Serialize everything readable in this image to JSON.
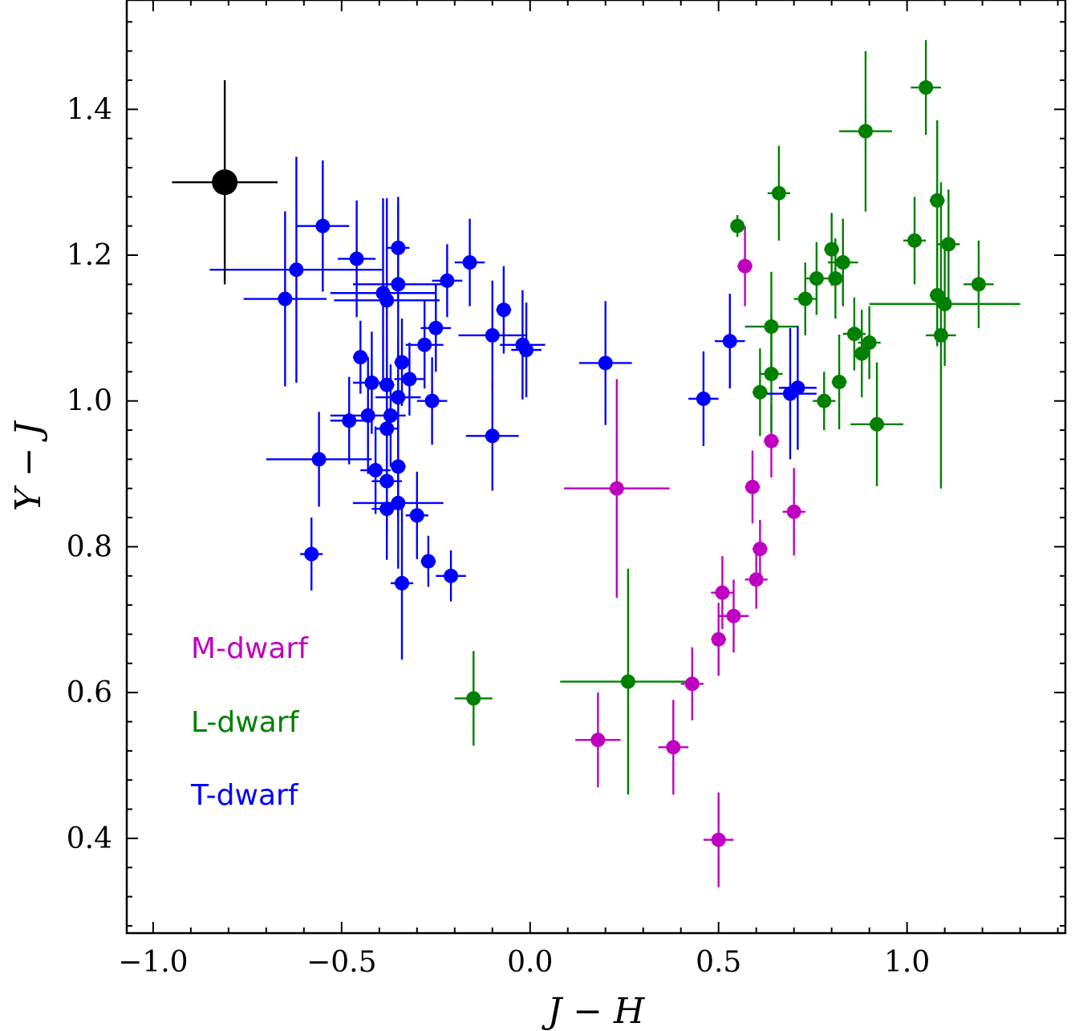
{
  "chart_data": {
    "type": "scatter",
    "xlabel": "J − H",
    "ylabel": "Y − J",
    "xlim": [
      -1.07,
      1.42
    ],
    "ylim": [
      0.27,
      1.55
    ],
    "xticks": [
      -1.0,
      -0.5,
      0.0,
      0.5,
      1.0
    ],
    "xtick_labels": [
      "−1.0",
      "−0.5",
      "0.0",
      "0.5",
      "1.0"
    ],
    "yticks": [
      0.4,
      0.6,
      0.8,
      1.0,
      1.2,
      1.4
    ],
    "ytick_labels": [
      "0.4",
      "0.6",
      "0.8",
      "1.0",
      "1.2",
      "1.4"
    ],
    "grid": false,
    "legend_placement": "bottom-left",
    "colors": {
      "M-dwarf": "#c000c0",
      "L-dwarf": "#008000",
      "T-dwarf": "#0000ff",
      "highlight": "#000000"
    },
    "series": [
      {
        "name": "M-dwarf",
        "points": [
          {
            "x": 0.57,
            "y": 1.185,
            "xerr": 0.02,
            "yerr": 0.055
          },
          {
            "x": 0.64,
            "y": 0.945,
            "xerr": 0.02,
            "yerr": 0.05
          },
          {
            "x": 0.59,
            "y": 0.882,
            "xerr": 0.02,
            "yerr": 0.05
          },
          {
            "x": 0.23,
            "y": 0.88,
            "xerr": 0.14,
            "yerr": 0.15
          },
          {
            "x": 0.7,
            "y": 0.848,
            "xerr": 0.03,
            "yerr": 0.06
          },
          {
            "x": 0.61,
            "y": 0.797,
            "xerr": 0.02,
            "yerr": 0.04
          },
          {
            "x": 0.6,
            "y": 0.755,
            "xerr": 0.03,
            "yerr": 0.04
          },
          {
            "x": 0.51,
            "y": 0.737,
            "xerr": 0.03,
            "yerr": 0.05
          },
          {
            "x": 0.54,
            "y": 0.705,
            "xerr": 0.04,
            "yerr": 0.05
          },
          {
            "x": 0.5,
            "y": 0.673,
            "xerr": 0.02,
            "yerr": 0.05
          },
          {
            "x": 0.43,
            "y": 0.612,
            "xerr": 0.03,
            "yerr": 0.05
          },
          {
            "x": 0.18,
            "y": 0.535,
            "xerr": 0.06,
            "yerr": 0.065
          },
          {
            "x": 0.38,
            "y": 0.525,
            "xerr": 0.04,
            "yerr": 0.065
          },
          {
            "x": 0.5,
            "y": 0.398,
            "xerr": 0.04,
            "yerr": 0.065
          }
        ]
      },
      {
        "name": "L-dwarf",
        "points": [
          {
            "x": 1.05,
            "y": 1.43,
            "xerr": 0.04,
            "yerr": 0.065
          },
          {
            "x": 0.89,
            "y": 1.37,
            "xerr": 0.07,
            "yerr": 0.11
          },
          {
            "x": 0.66,
            "y": 1.285,
            "xerr": 0.03,
            "yerr": 0.065
          },
          {
            "x": 1.08,
            "y": 1.275,
            "xerr": 0.02,
            "yerr": 0.11
          },
          {
            "x": 0.55,
            "y": 1.24,
            "xerr": 0.01,
            "yerr": 0.015
          },
          {
            "x": 1.02,
            "y": 1.22,
            "xerr": 0.03,
            "yerr": 0.06
          },
          {
            "x": 1.11,
            "y": 1.215,
            "xerr": 0.03,
            "yerr": 0.075
          },
          {
            "x": 0.8,
            "y": 1.208,
            "xerr": 0.02,
            "yerr": 0.05
          },
          {
            "x": 0.83,
            "y": 1.19,
            "xerr": 0.04,
            "yerr": 0.06
          },
          {
            "x": 0.76,
            "y": 1.168,
            "xerr": 0.03,
            "yerr": 0.05
          },
          {
            "x": 0.81,
            "y": 1.168,
            "xerr": 0.02,
            "yerr": 0.055
          },
          {
            "x": 1.19,
            "y": 1.16,
            "xerr": 0.04,
            "yerr": 0.06
          },
          {
            "x": 1.08,
            "y": 1.145,
            "xerr": 0.02,
            "yerr": 0.07
          },
          {
            "x": 0.73,
            "y": 1.14,
            "xerr": 0.03,
            "yerr": 0.05
          },
          {
            "x": 1.1,
            "y": 1.133,
            "xerr": 0.2,
            "yerr": 0.085
          },
          {
            "x": 0.64,
            "y": 1.102,
            "xerr": 0.07,
            "yerr": 0.075
          },
          {
            "x": 0.86,
            "y": 1.092,
            "xerr": 0.03,
            "yerr": 0.05
          },
          {
            "x": 1.09,
            "y": 1.09,
            "xerr": 0.04,
            "yerr": 0.21
          },
          {
            "x": 0.9,
            "y": 1.08,
            "xerr": 0.03,
            "yerr": 0.05
          },
          {
            "x": 0.88,
            "y": 1.065,
            "xerr": 0.02,
            "yerr": 0.06
          },
          {
            "x": 0.64,
            "y": 1.037,
            "xerr": 0.03,
            "yerr": 0.08
          },
          {
            "x": 0.82,
            "y": 1.026,
            "xerr": 0.02,
            "yerr": 0.065
          },
          {
            "x": 0.61,
            "y": 1.012,
            "xerr": 0.02,
            "yerr": 0.06
          },
          {
            "x": 0.78,
            "y": 1.0,
            "xerr": 0.03,
            "yerr": 0.04
          },
          {
            "x": 0.92,
            "y": 0.968,
            "xerr": 0.07,
            "yerr": 0.085
          },
          {
            "x": -0.15,
            "y": 0.592,
            "xerr": 0.05,
            "yerr": 0.065
          },
          {
            "x": 0.26,
            "y": 0.615,
            "xerr": 0.18,
            "yerr": 0.155
          }
        ]
      },
      {
        "name": "T-dwarf",
        "points": [
          {
            "x": -0.55,
            "y": 1.24,
            "xerr": 0.07,
            "yerr": 0.09
          },
          {
            "x": -0.46,
            "y": 1.195,
            "xerr": 0.05,
            "yerr": 0.08
          },
          {
            "x": -0.35,
            "y": 1.21,
            "xerr": 0.03,
            "yerr": 0.07
          },
          {
            "x": -0.62,
            "y": 1.18,
            "xerr": 0.23,
            "yerr": 0.155
          },
          {
            "x": -0.16,
            "y": 1.19,
            "xerr": 0.04,
            "yerr": 0.06
          },
          {
            "x": -0.22,
            "y": 1.165,
            "xerr": 0.04,
            "yerr": 0.05
          },
          {
            "x": -0.35,
            "y": 1.16,
            "xerr": 0.12,
            "yerr": 0.11
          },
          {
            "x": -0.39,
            "y": 1.148,
            "xerr": 0.14,
            "yerr": 0.13
          },
          {
            "x": -0.65,
            "y": 1.14,
            "xerr": 0.11,
            "yerr": 0.12
          },
          {
            "x": -0.38,
            "y": 1.138,
            "xerr": 0.14,
            "yerr": 0.14
          },
          {
            "x": -0.07,
            "y": 1.125,
            "xerr": 0.02,
            "yerr": 0.06
          },
          {
            "x": -0.25,
            "y": 1.1,
            "xerr": 0.04,
            "yerr": 0.06
          },
          {
            "x": -0.1,
            "y": 1.09,
            "xerr": 0.09,
            "yerr": 0.075
          },
          {
            "x": -0.02,
            "y": 1.077,
            "xerr": 0.06,
            "yerr": 0.075
          },
          {
            "x": -0.28,
            "y": 1.077,
            "xerr": 0.05,
            "yerr": 0.06
          },
          {
            "x": -0.01,
            "y": 1.07,
            "xerr": 0.04,
            "yerr": 0.065
          },
          {
            "x": 0.2,
            "y": 1.052,
            "xerr": 0.07,
            "yerr": 0.085
          },
          {
            "x": 0.53,
            "y": 1.082,
            "xerr": 0.04,
            "yerr": 0.065
          },
          {
            "x": -0.45,
            "y": 1.06,
            "xerr": 0.02,
            "yerr": 0.05
          },
          {
            "x": -0.34,
            "y": 1.053,
            "xerr": 0.02,
            "yerr": 0.06
          },
          {
            "x": -0.32,
            "y": 1.03,
            "xerr": 0.04,
            "yerr": 0.05
          },
          {
            "x": -0.42,
            "y": 1.025,
            "xerr": 0.05,
            "yerr": 0.07
          },
          {
            "x": -0.38,
            "y": 1.022,
            "xerr": 0.02,
            "yerr": 0.07
          },
          {
            "x": -0.35,
            "y": 1.005,
            "xerr": 0.06,
            "yerr": 0.08
          },
          {
            "x": -0.26,
            "y": 1.0,
            "xerr": 0.04,
            "yerr": 0.06
          },
          {
            "x": 0.46,
            "y": 1.003,
            "xerr": 0.04,
            "yerr": 0.065
          },
          {
            "x": 0.69,
            "y": 1.01,
            "xerr": 0.07,
            "yerr": 0.09
          },
          {
            "x": 0.71,
            "y": 1.018,
            "xerr": 0.05,
            "yerr": 0.085
          },
          {
            "x": -0.37,
            "y": 0.98,
            "xerr": 0.02,
            "yerr": 0.07
          },
          {
            "x": -0.43,
            "y": 0.98,
            "xerr": 0.1,
            "yerr": 0.08
          },
          {
            "x": -0.48,
            "y": 0.973,
            "xerr": 0.05,
            "yerr": 0.06
          },
          {
            "x": -0.38,
            "y": 0.962,
            "xerr": 0.03,
            "yerr": 0.07
          },
          {
            "x": -0.1,
            "y": 0.952,
            "xerr": 0.07,
            "yerr": 0.075
          },
          {
            "x": -0.56,
            "y": 0.92,
            "xerr": 0.14,
            "yerr": 0.065
          },
          {
            "x": -0.35,
            "y": 0.91,
            "xerr": 0.02,
            "yerr": 0.07
          },
          {
            "x": -0.41,
            "y": 0.905,
            "xerr": 0.04,
            "yerr": 0.06
          },
          {
            "x": -0.38,
            "y": 0.89,
            "xerr": 0.04,
            "yerr": 0.07
          },
          {
            "x": -0.35,
            "y": 0.86,
            "xerr": 0.12,
            "yerr": 0.09
          },
          {
            "x": -0.38,
            "y": 0.852,
            "xerr": 0.04,
            "yerr": 0.07
          },
          {
            "x": -0.3,
            "y": 0.843,
            "xerr": 0.03,
            "yerr": 0.06
          },
          {
            "x": -0.58,
            "y": 0.79,
            "xerr": 0.03,
            "yerr": 0.05
          },
          {
            "x": -0.27,
            "y": 0.78,
            "xerr": 0.02,
            "yerr": 0.035
          },
          {
            "x": -0.21,
            "y": 0.76,
            "xerr": 0.04,
            "yerr": 0.035
          },
          {
            "x": -0.34,
            "y": 0.75,
            "xerr": 0.03,
            "yerr": 0.105
          }
        ]
      },
      {
        "name": "",
        "points": [
          {
            "x": -0.81,
            "y": 1.3,
            "xerr": 0.14,
            "yerr": 0.14
          }
        ]
      }
    ],
    "legend": [
      {
        "label": "M-dwarf",
        "color": "#c000c0"
      },
      {
        "label": "L-dwarf",
        "color": "#008000"
      },
      {
        "label": "T-dwarf",
        "color": "#0000ff"
      }
    ]
  }
}
